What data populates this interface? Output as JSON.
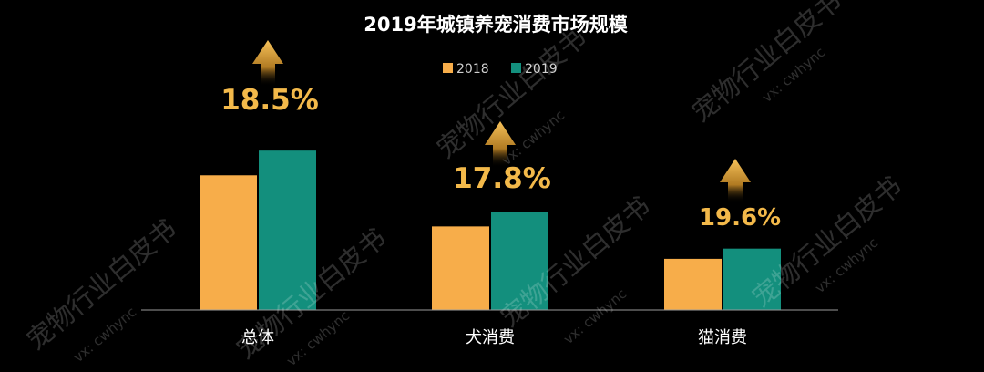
{
  "chart_data": {
    "type": "bar",
    "title": "2019年城镇养宠消费市场规模",
    "categories": [
      "总体",
      "犬消费",
      "猫消费"
    ],
    "series": [
      {
        "name": "2018",
        "values": [
          158,
          98,
          60
        ]
      },
      {
        "name": "2019",
        "values": [
          187,
          115,
          72
        ]
      }
    ],
    "growth_labels": [
      "18.5%",
      "17.8%",
      "19.6%"
    ],
    "ylim": [
      0,
      200
    ],
    "grid": false,
    "legend": "top-center",
    "colors": {
      "2018": "#f7ad4a",
      "2019": "#138f7d",
      "accent": "#f3b94a",
      "background": "#000000"
    }
  },
  "watermark": {
    "line1": "宠物行业白皮书",
    "line2": "vx: cwhync"
  }
}
